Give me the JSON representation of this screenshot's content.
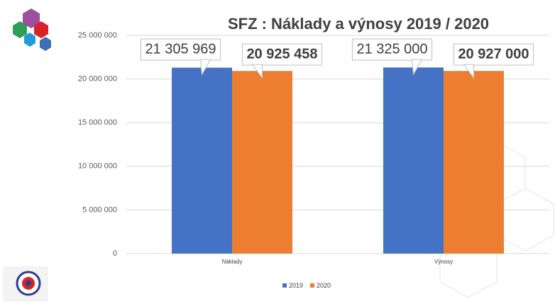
{
  "chart_data": {
    "type": "bar",
    "title": "SFZ : Náklady a výnosy 2019 / 2020",
    "categories": [
      "Náklady",
      "Výnosy"
    ],
    "series": [
      {
        "name": "2019",
        "color": "#4472c4",
        "values": [
          21305969,
          21325000
        ],
        "value_labels": [
          "21 305 969",
          "21 325 000"
        ]
      },
      {
        "name": "2020",
        "color": "#ed7d31",
        "values": [
          20925458,
          20927000
        ],
        "value_labels": [
          "20 925 458",
          "20 927 000"
        ]
      }
    ],
    "ylim": [
      0,
      25000000
    ],
    "yticks": [
      0,
      {
        "value": 5000000,
        "label": "5 000 000"
      },
      {
        "value": 10000000,
        "label": "10 000 000"
      },
      {
        "value": 15000000,
        "label": "15 000 000"
      },
      {
        "value": 20000000,
        "label": "20 000 000"
      },
      {
        "value": 25000000,
        "label": "25 000 000"
      }
    ],
    "grid": true,
    "legend": "bottom"
  }
}
